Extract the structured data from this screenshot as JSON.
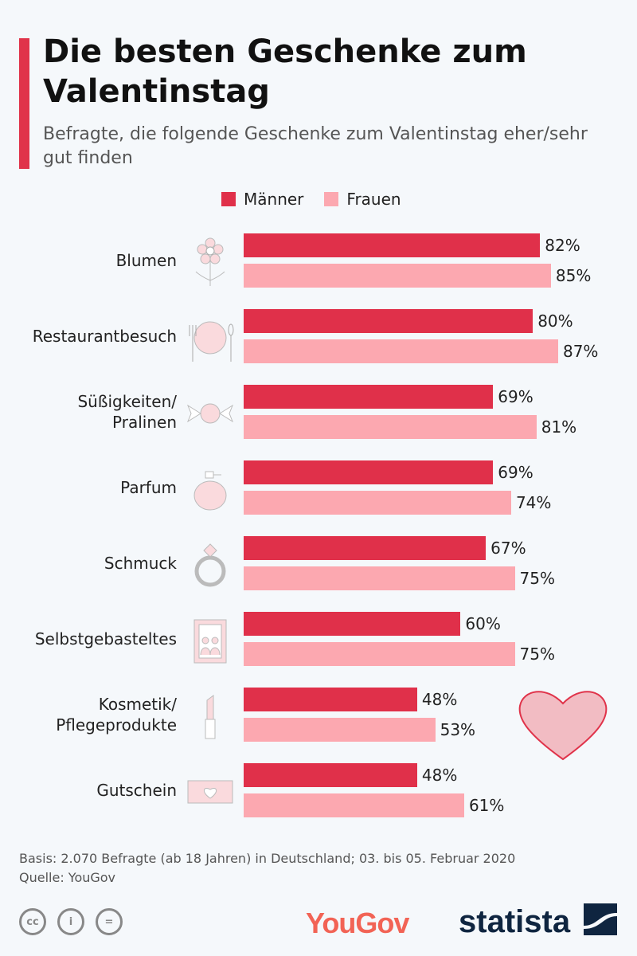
{
  "title": "Die besten Geschenke zum Valentinstag",
  "subtitle": "Befragte, die folgende Geschenke zum Valentinstag eher/sehr gut finden",
  "colors": {
    "maenner": "#e0304a",
    "frauen": "#fca8b0",
    "accent": "#e0334a"
  },
  "chart_data": {
    "type": "bar",
    "orientation": "horizontal",
    "categories": [
      "Blumen",
      "Restaurantbesuch",
      "Süßigkeiten/ Pralinen",
      "Parfum",
      "Schmuck",
      "Selbstgebasteltes",
      "Kosmetik/ Pflegeprodukte",
      "Gutschein"
    ],
    "icons": [
      "flower-icon",
      "plate-cutlery-icon",
      "candy-icon",
      "perfume-icon",
      "ring-icon",
      "picture-frame-icon",
      "lipstick-icon",
      "voucher-icon"
    ],
    "series": [
      {
        "name": "Männer",
        "values": [
          82,
          80,
          69,
          69,
          67,
          60,
          48,
          48
        ]
      },
      {
        "name": "Frauen",
        "values": [
          85,
          87,
          81,
          74,
          75,
          75,
          53,
          61
        ]
      }
    ],
    "unit": "%",
    "xlim": [
      0,
      100
    ],
    "legend": "top",
    "grid": false
  },
  "footer": {
    "basis": "Basis: 2.070 Befragte (ab 18 Jahren) in Deutschland; 03. bis 05. Februar 2020",
    "source": "Quelle: YouGov"
  },
  "logos": {
    "yougov": "YouGov",
    "statista": "statista"
  }
}
